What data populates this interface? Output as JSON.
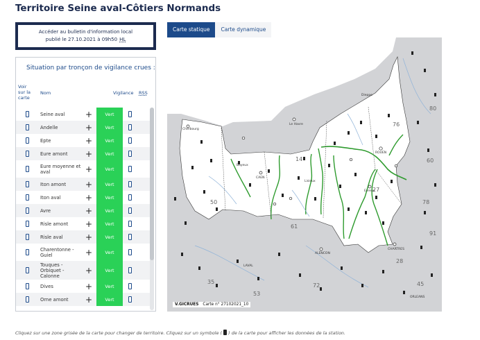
{
  "page": {
    "title": "Territoire Seine aval-Côtiers Normands"
  },
  "bulletin": {
    "line1": "Accéder au bulletin d'information local",
    "line2": "publié le 27.10.2021 à 09h50",
    "hl": "HL"
  },
  "panel": {
    "title": "Situation par tronçon de vigilance crues :",
    "headers": {
      "voir": "Voir sur la carte",
      "nom": "Nom",
      "vigilance": "Vigilance",
      "rss": "RSS"
    },
    "rows": [
      {
        "name": "Seine aval",
        "level": "Vert"
      },
      {
        "name": "Andelle",
        "level": "Vert"
      },
      {
        "name": "Epte",
        "level": "Vert"
      },
      {
        "name": "Eure amont",
        "level": "Vert"
      },
      {
        "name": "Eure moyenne et aval",
        "level": "Vert"
      },
      {
        "name": "Iton amont",
        "level": "Vert"
      },
      {
        "name": "Iton aval",
        "level": "Vert"
      },
      {
        "name": "Avre",
        "level": "Vert"
      },
      {
        "name": "Risle amont",
        "level": "Vert"
      },
      {
        "name": "Risle aval",
        "level": "Vert"
      },
      {
        "name": "Charentonne - Guiel",
        "level": "Vert"
      },
      {
        "name": "Touques - Orbiquet - Calonne",
        "level": "Vert"
      },
      {
        "name": "Dives",
        "level": "Vert"
      },
      {
        "name": "Orne amont",
        "level": "Vert"
      }
    ],
    "plus": "+",
    "vigilance_color": "#2ad157"
  },
  "tabs": [
    {
      "label": "Carte statique",
      "active": true
    },
    {
      "label": "Carte dynamique",
      "active": false
    }
  ],
  "map": {
    "stamp_org": "V.GICRUES",
    "stamp_ref": "Carte n°  27102021_10",
    "departments": [
      "76",
      "14",
      "27",
      "61",
      "50",
      "28",
      "35",
      "53",
      "72",
      "45",
      "91",
      "78",
      "60",
      "80"
    ],
    "places": [
      "Cherbourg",
      "Le Havre",
      "ROUEN",
      "CAEN",
      "Evreux",
      "CHARTRES",
      "ALENCON",
      "LAVAL",
      "Lisieux",
      "Bayeux",
      "Dieppe",
      "ORLEANS"
    ],
    "colors": {
      "territory": "#ffffff",
      "outside": "#d2d3d6",
      "sea": "#ffffff",
      "river": "#2e9b2e",
      "border": "#222222"
    }
  },
  "footer": {
    "text_before": "Cliquez sur une zone grisée de la carte pour changer de territoire. Cliquez sur un symbole (",
    "text_after": ") de la carte pour afficher les données de la station."
  }
}
